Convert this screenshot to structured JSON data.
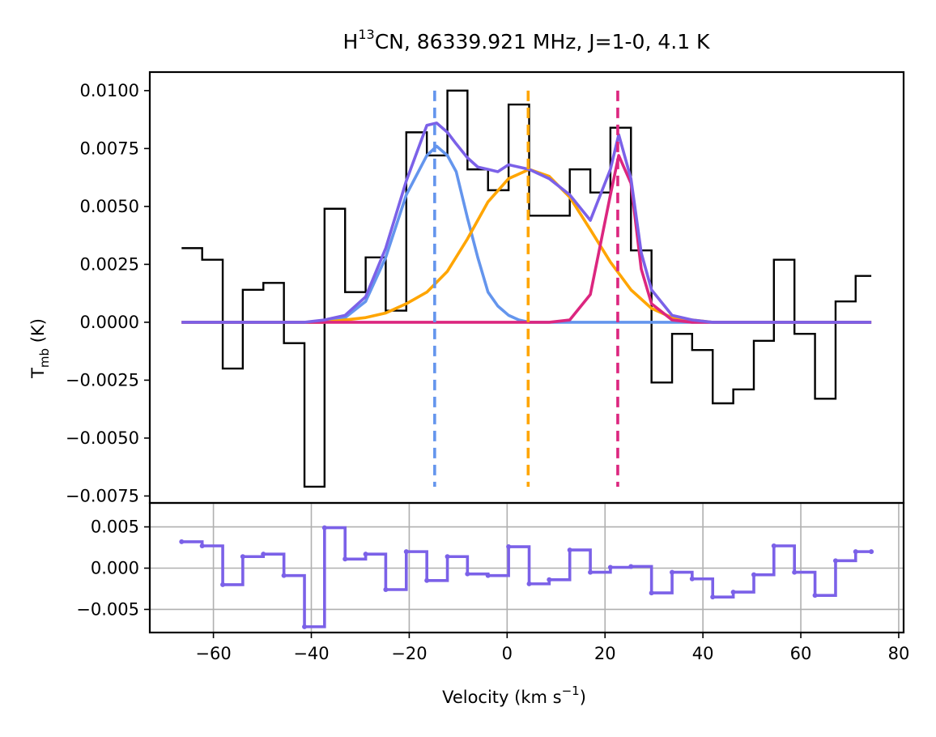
{
  "chart_data": [
    {
      "type": "line",
      "title": "H$^{13}$CN, 86339.921 MHz, J=1-0, 4.1 K",
      "title_parts": {
        "base": "H",
        "sup": "13",
        "rest": "CN, 86339.921 MHz, J=1-0, 4.1 K"
      },
      "ylabel": "T_mb (K)",
      "ylabel_parts": {
        "base": "T",
        "sub": "mb",
        "rest": " (K)"
      },
      "xlim": [
        -73,
        81
      ],
      "ylim": [
        -0.0078,
        0.0108
      ],
      "yticks": [
        -0.0075,
        -0.005,
        -0.0025,
        0.0,
        0.0025,
        0.005,
        0.0075,
        0.01
      ],
      "ytick_labels": [
        "−0.0075",
        "−0.0050",
        "−0.0025",
        "0.0000",
        "0.0025",
        "0.0050",
        "0.0075",
        "0.0100"
      ],
      "grid": false,
      "spectrum": {
        "name": "",
        "color": "#000000",
        "x": [
          -66.5,
          -62.3,
          -58.1,
          -54.0,
          -49.8,
          -45.6,
          -41.4,
          -37.3,
          -33.1,
          -28.9,
          -24.8,
          -20.6,
          -16.4,
          -12.2,
          -8.1,
          -3.9,
          0.3,
          4.5,
          8.6,
          12.8,
          17.0,
          21.1,
          25.3,
          29.5,
          33.7,
          37.8,
          42.0,
          46.2,
          50.4,
          54.5,
          58.7,
          62.9,
          67.1,
          71.2,
          74.4
        ],
        "y": [
          0.0032,
          0.0027,
          -0.002,
          0.0014,
          0.0017,
          -0.0009,
          -0.0071,
          0.0049,
          0.0013,
          0.0028,
          0.0005,
          0.0082,
          0.0072,
          0.01,
          0.0066,
          0.0057,
          0.0094,
          0.0046,
          0.0046,
          0.0066,
          0.0056,
          0.0084,
          0.0031,
          -0.0026,
          -0.0005,
          -0.0012,
          -0.0035,
          -0.0029,
          -0.0008,
          0.0027,
          -0.0005,
          -0.0033,
          0.0009,
          0.002,
          0.002
        ]
      },
      "series": [
        {
          "name": "",
          "color": "#6495ed",
          "x": [
            -66.5,
            -62.3,
            -58.1,
            -54.0,
            -49.8,
            -45.6,
            -41.4,
            -37.3,
            -33.1,
            -28.9,
            -24.8,
            -20.6,
            -16.4,
            -14.4,
            -12.2,
            -10.4,
            -8.1,
            -6.0,
            -3.9,
            -1.9,
            0.3,
            2.4,
            4.5,
            8.6,
            12.8,
            74.4
          ],
          "y": [
            0,
            0,
            0,
            0,
            0,
            0,
            0,
            0,
            0.0002,
            0.0009,
            0.0028,
            0.0055,
            0.0072,
            0.0076,
            0.0072,
            0.0065,
            0.0045,
            0.0028,
            0.0013,
            0.0007,
            0.0003,
            0.0001,
            0,
            0,
            0,
            0
          ]
        },
        {
          "name": "",
          "color": "#ffa500",
          "x": [
            -66.5,
            -37.3,
            -33.1,
            -28.9,
            -24.8,
            -20.6,
            -16.4,
            -12.2,
            -8.1,
            -3.9,
            0.3,
            4.5,
            8.6,
            12.8,
            17.0,
            21.1,
            25.3,
            29.5,
            33.7,
            37.8,
            42.0,
            74.4
          ],
          "y": [
            0,
            0,
            0.0001,
            0.0002,
            0.0004,
            0.0008,
            0.0013,
            0.0022,
            0.0036,
            0.0052,
            0.0062,
            0.0066,
            0.0063,
            0.0054,
            0.004,
            0.0026,
            0.0014,
            0.0006,
            0.0002,
            0.0001,
            0,
            0
          ]
        },
        {
          "name": "",
          "color": "#dc267f",
          "x": [
            -66.5,
            8.6,
            12.8,
            17.0,
            21.1,
            22.8,
            25.3,
            27.4,
            29.5,
            33.7,
            37.8,
            74.4
          ],
          "y": [
            0,
            0,
            0.0001,
            0.0012,
            0.0055,
            0.0072,
            0.006,
            0.0023,
            0.0008,
            0.0001,
            0,
            0
          ]
        },
        {
          "name": "",
          "color": "#7b61e8",
          "x": [
            -66.5,
            -41.4,
            -37.3,
            -33.1,
            -28.9,
            -24.8,
            -20.6,
            -16.4,
            -14.4,
            -12.2,
            -10.4,
            -8.1,
            -6.0,
            -3.9,
            -1.9,
            0.3,
            2.4,
            4.5,
            8.6,
            12.8,
            17.0,
            21.1,
            22.8,
            25.3,
            27.4,
            29.5,
            33.7,
            37.8,
            42.0,
            74.4
          ],
          "y": [
            0,
            0,
            0.0001,
            0.0003,
            0.0011,
            0.0032,
            0.0061,
            0.0085,
            0.0086,
            0.0082,
            0.0077,
            0.0071,
            0.0067,
            0.0066,
            0.0065,
            0.0068,
            0.0067,
            0.0066,
            0.0062,
            0.0055,
            0.0044,
            0.0066,
            0.0081,
            0.0062,
            0.003,
            0.0014,
            0.0003,
            0.0001,
            0,
            0
          ]
        }
      ],
      "vlines": [
        {
          "x": -14.8,
          "color": "#6495ed"
        },
        {
          "x": 4.3,
          "color": "#ffa500"
        },
        {
          "x": 22.6,
          "color": "#dc267f"
        }
      ]
    },
    {
      "type": "line",
      "xlabel": "Velocity (km s$^{-1}$)",
      "xlabel_parts": {
        "base": "Velocity (km s",
        "sup": "−1",
        "rest": ")"
      },
      "xlim": [
        -73,
        81
      ],
      "ylim": [
        -0.0078,
        0.0079
      ],
      "xticks": [
        -60,
        -40,
        -20,
        0,
        20,
        40,
        60,
        80
      ],
      "xtick_labels": [
        "−60",
        "−40",
        "−20",
        "0",
        "20",
        "40",
        "60",
        "80"
      ],
      "yticks": [
        -0.005,
        0.0,
        0.005
      ],
      "ytick_labels": [
        "−0.005",
        "0.000",
        "0.005"
      ],
      "grid": true,
      "residual": {
        "name": "",
        "color": "#7b61e8",
        "x": [
          -66.5,
          -62.3,
          -58.1,
          -54.0,
          -49.8,
          -45.6,
          -41.4,
          -37.3,
          -33.1,
          -28.9,
          -24.8,
          -20.6,
          -16.4,
          -12.2,
          -8.1,
          -3.9,
          0.3,
          4.5,
          8.6,
          12.8,
          17.0,
          21.1,
          25.3,
          29.5,
          33.7,
          37.8,
          42.0,
          46.2,
          50.4,
          54.5,
          58.7,
          62.9,
          67.1,
          71.2,
          74.4
        ],
        "y": [
          0.0032,
          0.0027,
          -0.002,
          0.0014,
          0.0017,
          -0.0009,
          -0.0071,
          0.0049,
          0.0011,
          0.0017,
          -0.0026,
          0.002,
          -0.0015,
          0.0014,
          -0.0007,
          -0.0009,
          0.0026,
          -0.0019,
          -0.0014,
          0.0022,
          -0.0005,
          0.0001,
          0.0002,
          -0.003,
          -0.0005,
          -0.0013,
          -0.0035,
          -0.0029,
          -0.0008,
          0.0027,
          -0.0005,
          -0.0033,
          0.0009,
          0.002,
          0.002
        ]
      }
    }
  ]
}
